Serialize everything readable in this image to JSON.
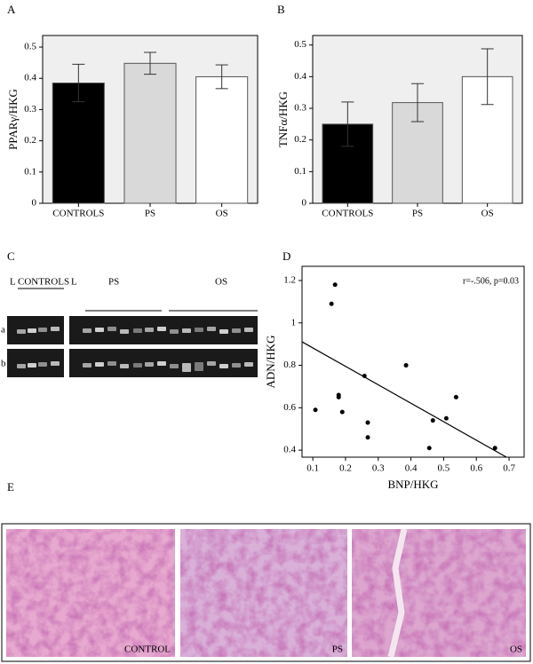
{
  "chart_data": [
    {
      "type": "bar",
      "panel": "A",
      "ylabel": "PPARγ/HKG",
      "categories": [
        "CONTROLS",
        "PS",
        "OS"
      ],
      "values": [
        0.385,
        0.448,
        0.405
      ],
      "errors": [
        0.06,
        0.035,
        0.038
      ],
      "colors": [
        "#000000",
        "#d9d9d9",
        "#ffffff"
      ],
      "ylim": [
        0,
        0.537
      ],
      "yticks": [
        0,
        0.1,
        0.2,
        0.3,
        0.4,
        0.5
      ]
    },
    {
      "type": "bar",
      "panel": "B",
      "ylabel": "TNFα/HKG",
      "categories": [
        "CONTROLS",
        "PS",
        "OS"
      ],
      "values": [
        0.25,
        0.318,
        0.4
      ],
      "errors": [
        0.07,
        0.06,
        0.088
      ],
      "colors": [
        "#000000",
        "#d9d9d9",
        "#ffffff"
      ],
      "ylim": [
        0,
        0.53
      ],
      "yticks": [
        0,
        0.1,
        0.2,
        0.3,
        0.4,
        0.5
      ]
    },
    {
      "type": "scatter",
      "panel": "D",
      "xlabel": "BNP/HKG",
      "ylabel": "ADN/HKG",
      "annotation": "r=-.506, p=0.03",
      "color": "#000000",
      "x": [
        0.157,
        0.168,
        0.108,
        0.179,
        0.179,
        0.19,
        0.258,
        0.268,
        0.268,
        0.385,
        0.456,
        0.467,
        0.508,
        0.538,
        0.657
      ],
      "y": [
        1.09,
        1.18,
        0.59,
        0.66,
        0.65,
        0.58,
        0.75,
        0.53,
        0.46,
        0.8,
        0.41,
        0.54,
        0.55,
        0.65,
        0.41
      ],
      "fit": {
        "x": [
          0.067,
          0.692
        ],
        "y": [
          0.911,
          0.367
        ]
      },
      "xlim": [
        0.067,
        0.746
      ],
      "ylim": [
        0.367,
        1.267
      ],
      "xticks": [
        0.1,
        0.2,
        0.3,
        0.4,
        0.5,
        0.6,
        0.7
      ],
      "yticks": [
        0.4,
        0.6,
        0.8,
        1,
        1.2
      ]
    }
  ],
  "gel": {
    "panel": "C",
    "ladder_left": "L",
    "controls": "CONTROLS",
    "ladder_right": "L",
    "ps": "PS",
    "os": "OS",
    "row_a": "a",
    "row_b": "b"
  },
  "histology": {
    "panel": "E",
    "labels": [
      "CONTROL",
      "PS",
      "OS"
    ]
  }
}
